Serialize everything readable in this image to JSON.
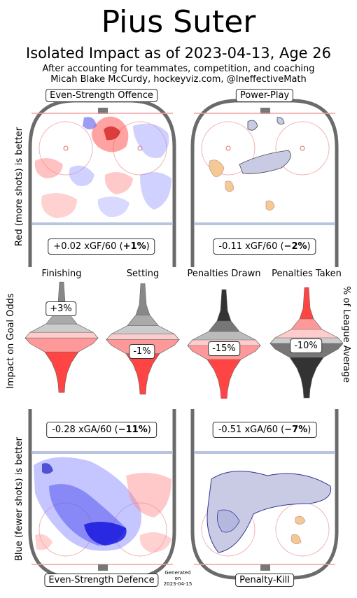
{
  "title": "Pius Suter",
  "subtitle": "Isolated Impact as of 2023-04-13, Age 26",
  "credit_line1": "After accounting for teammates, competition, and coaching",
  "credit_line2": "Micah Blake McCurdy, hockeyviz.com, @IneffectiveMath",
  "generated": [
    "Generated",
    "on",
    "2023-04-15"
  ],
  "side_labels": {
    "top": "Red (more shots) is better",
    "middle": "Impact on Goal Odds",
    "bottom": "Blue (fewer shots) is better",
    "right": "% of League Average"
  },
  "chart_data": [
    {
      "type": "heatmap",
      "title": "Even-Strength Offence",
      "metric": "xGF/60",
      "value": "+0.02",
      "percent": "+1%",
      "value_text": "+0.02 xGF/60 (",
      "percent_text": "+1%",
      "close_text": ")"
    },
    {
      "type": "heatmap",
      "title": "Power-Play",
      "metric": "xGF/60",
      "value": "-0.11",
      "percent": "−2%",
      "value_text": "-0.11 xGF/60 (",
      "percent_text": "−2%",
      "close_text": ")"
    },
    {
      "type": "heatmap",
      "title": "Even-Strength Defence",
      "metric": "xGA/60",
      "value": "-0.28",
      "percent": "−11%",
      "value_text": "-0.28 xGA/60 (",
      "percent_text": "−11%",
      "close_text": ")"
    },
    {
      "type": "heatmap",
      "title": "Penalty-Kill",
      "metric": "xGA/60",
      "value": "-0.51",
      "percent": "−7%",
      "value_text": "-0.51 xGA/60 (",
      "percent_text": "−7%",
      "close_text": ")"
    },
    {
      "type": "violin",
      "categories": [
        "Finishing",
        "Setting",
        "Penalties Drawn",
        "Penalties Taken"
      ],
      "values": [
        "+3%",
        "-1%",
        "-15%",
        "-10%"
      ],
      "numeric_values": [
        3,
        -1,
        -15,
        -10
      ]
    }
  ],
  "colors": {
    "offence_good": "#ff3333",
    "defence_good": "#3333ff",
    "board": "#6b6b6b",
    "blue_line": "#b8c4e0",
    "goal_line": "#f2a0a0",
    "pp_blob": "#f5c992",
    "pk_blob": "#c9cbe4"
  }
}
